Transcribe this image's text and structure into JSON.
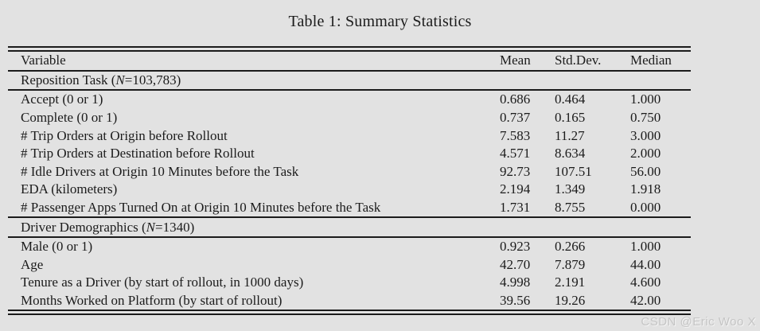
{
  "title": "Table 1: Summary Statistics",
  "watermark": "CSDN @Eric Woo X",
  "colors": {
    "background": "#e2e2e2",
    "text": "#1b1b1b",
    "rule": "#1b1b1b",
    "watermark": "#c5c5c5"
  },
  "table": {
    "columns": [
      "Variable",
      "Mean",
      "Std.Dev.",
      "Median"
    ],
    "sections": [
      {
        "header": {
          "pre": "Reposition Task (",
          "n": "N",
          "post": "=103,783)"
        },
        "rows": [
          {
            "label": "Accept (0 or 1)",
            "mean": "0.686",
            "std": "0.464",
            "median": "1.000"
          },
          {
            "label": "Complete (0 or 1)",
            "mean": "0.737",
            "std": "0.165",
            "median": "0.750"
          },
          {
            "label": "# Trip Orders at Origin before Rollout",
            "mean": "7.583",
            "std": "11.27",
            "median": "3.000"
          },
          {
            "label": "# Trip Orders at Destination before Rollout",
            "mean": "4.571",
            "std": "8.634",
            "median": "2.000"
          },
          {
            "label": "# Idle Drivers at Origin 10 Minutes before the Task",
            "mean": "92.73",
            "std": "107.51",
            "median": "56.00"
          },
          {
            "label": "EDA (kilometers)",
            "mean": "2.194",
            "std": "1.349",
            "median": "1.918"
          },
          {
            "label": "# Passenger Apps Turned On at Origin 10 Minutes before the Task",
            "mean": "1.731",
            "std": "8.755",
            "median": "0.000"
          }
        ]
      },
      {
        "header": {
          "pre": "Driver Demographics (",
          "n": "N",
          "post": "=1340)"
        },
        "rows": [
          {
            "label": "Male (0 or 1)",
            "mean": "0.923",
            "std": "0.266",
            "median": "1.000"
          },
          {
            "label": "Age",
            "mean": "42.70",
            "std": "7.879",
            "median": "44.00"
          },
          {
            "label": "Tenure as a Driver (by start of rollout, in 1000 days)",
            "mean": "4.998",
            "std": "2.191",
            "median": "4.600"
          },
          {
            "label": "Months Worked on Platform (by start of rollout)",
            "mean": "39.56",
            "std": "19.26",
            "median": "42.00"
          }
        ]
      }
    ]
  }
}
